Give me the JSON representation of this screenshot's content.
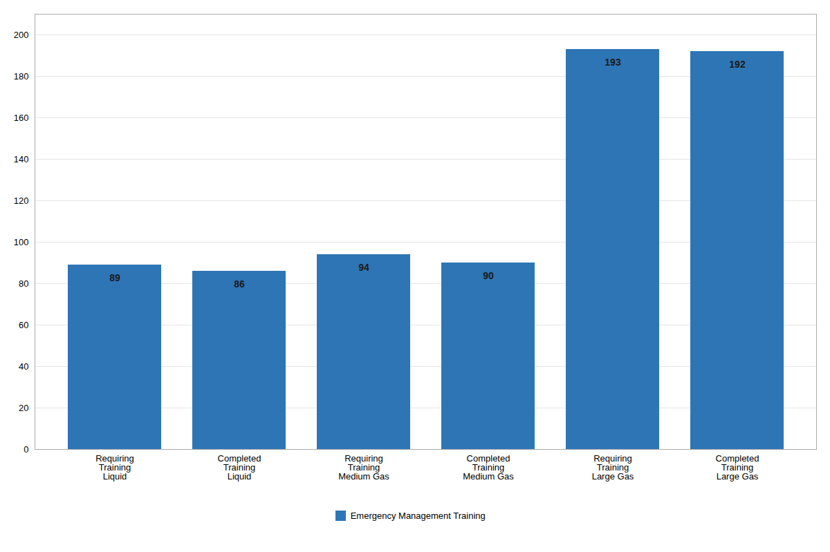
{
  "chart_data": {
    "type": "bar",
    "categories": [
      "Requiring\nTraining\nLiquid",
      "Completed\nTraining\nLiquid",
      "Requiring\nTraining\nMedium Gas",
      "Completed\nTraining\nMedium Gas",
      "Requiring\nTraining\nLarge Gas",
      "Completed\nTraining\nLarge Gas"
    ],
    "series": [
      {
        "name": "Emergency Management Training",
        "color": "#2E75B6",
        "values": [
          89,
          86,
          94,
          90,
          193,
          192
        ]
      }
    ],
    "ylim": [
      0,
      210
    ],
    "yticks": [
      0,
      20,
      40,
      60,
      80,
      100,
      120,
      140,
      160,
      180,
      200
    ],
    "grid": true,
    "legend": "bottom",
    "data_labels": true
  }
}
